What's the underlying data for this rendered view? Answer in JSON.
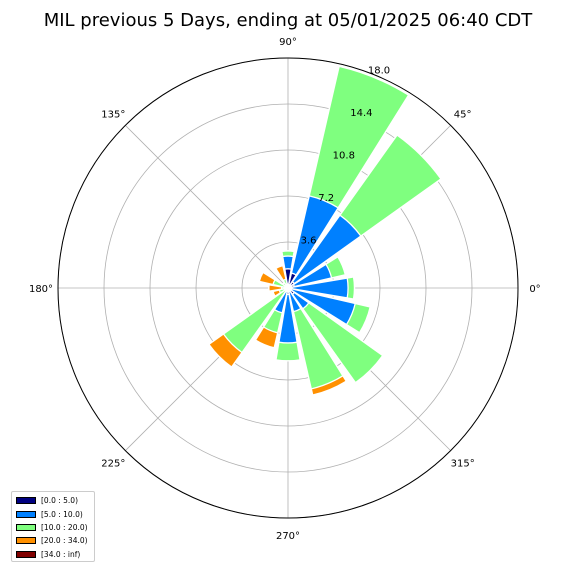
{
  "page": {
    "title": "MIL previous 5 Days, ending at 05/01/2025 06:40 CDT"
  },
  "chart_data": {
    "type": "windrose",
    "title": "MIL previous 5 Days, ending at 05/01/2025 06:40 CDT",
    "angle_labels": [
      {
        "deg": 0,
        "label": "0°"
      },
      {
        "deg": 45,
        "label": "45°"
      },
      {
        "deg": 90,
        "label": "90°"
      },
      {
        "deg": 135,
        "label": "135°"
      },
      {
        "deg": 180,
        "label": "180°"
      },
      {
        "deg": 225,
        "label": "225°"
      },
      {
        "deg": 270,
        "label": "270°"
      },
      {
        "deg": 315,
        "label": "315°"
      }
    ],
    "radial_ticks": [
      "3.6",
      "7.2",
      "10.8",
      "14.4",
      "18.0"
    ],
    "radial_tick_values": [
      3.6,
      7.2,
      10.8,
      14.4,
      18.0
    ],
    "r_max": 18.0,
    "grid": true,
    "legend_position": "lower-left",
    "bins": [
      {
        "label": "[0.0 : 5.0)",
        "color": "#000080"
      },
      {
        "label": "[5.0 : 10.0)",
        "color": "#0080ff"
      },
      {
        "label": "[10.0 : 20.0)",
        "color": "#7fff7f"
      },
      {
        "label": "[20.0 : 34.0)",
        "color": "#ff9000"
      },
      {
        "label": "[34.0 : inf)",
        "color": "#800000"
      }
    ],
    "directions": [
      {
        "deg": 0,
        "cum": [
          0.3,
          4.7,
          5.2,
          5.2,
          5.2
        ]
      },
      {
        "deg": 22.5,
        "cum": [
          0.5,
          3.5,
          4.6,
          4.6,
          4.6
        ]
      },
      {
        "deg": 45,
        "cum": [
          0.6,
          7.0,
          14.7,
          14.7,
          14.7
        ]
      },
      {
        "deg": 67.5,
        "cum": [
          1.2,
          7.4,
          17.8,
          17.8,
          17.8
        ]
      },
      {
        "deg": 90,
        "cum": [
          1.5,
          2.5,
          2.9,
          2.9,
          2.9
        ]
      },
      {
        "deg": 112.5,
        "cum": [
          0.3,
          0.3,
          0.7,
          1.8,
          1.8
        ]
      },
      {
        "deg": 135,
        "cum": [
          0.0,
          0.0,
          0.5,
          0.5,
          0.5
        ]
      },
      {
        "deg": 157.5,
        "cum": [
          0.0,
          0.0,
          1.2,
          2.3,
          2.3
        ]
      },
      {
        "deg": 180,
        "cum": [
          0.0,
          0.0,
          0.5,
          1.5,
          1.5
        ]
      },
      {
        "deg": 202.5,
        "cum": [
          0.0,
          0.0,
          0.7,
          1.2,
          1.2
        ]
      },
      {
        "deg": 225,
        "cum": [
          0.0,
          0.2,
          6.2,
          7.6,
          7.6
        ]
      },
      {
        "deg": 247.5,
        "cum": [
          0.3,
          2.0,
          3.6,
          4.8,
          4.8
        ]
      },
      {
        "deg": 270,
        "cum": [
          0.5,
          4.3,
          5.7,
          5.7,
          5.7
        ]
      },
      {
        "deg": 292.5,
        "cum": [
          0.3,
          1.9,
          8.1,
          8.6,
          8.6
        ]
      },
      {
        "deg": 315,
        "cum": [
          0.6,
          2.0,
          9.1,
          9.1,
          9.1
        ]
      },
      {
        "deg": 337.5,
        "cum": [
          0.3,
          5.4,
          6.6,
          6.6,
          6.6
        ]
      }
    ]
  }
}
